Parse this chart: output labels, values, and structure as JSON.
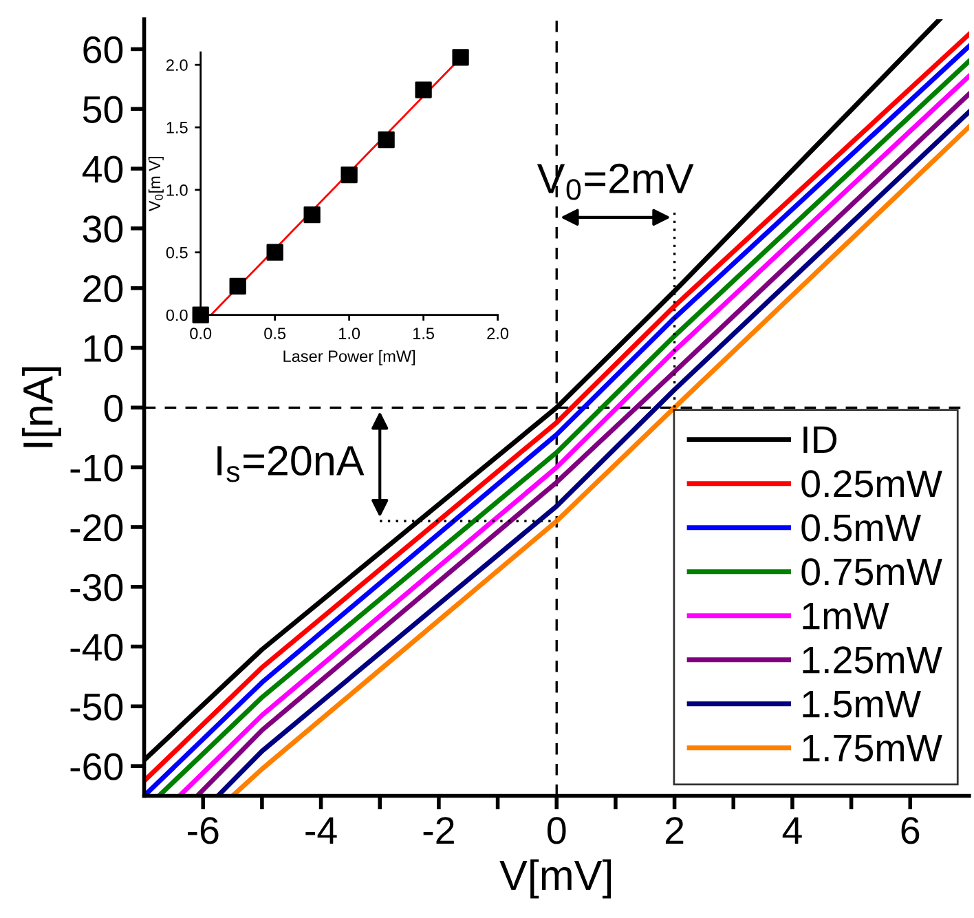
{
  "chart_data": [
    {
      "type": "line",
      "xlabel": "V[mV]",
      "ylabel": "I[nA]",
      "xlim": [
        -7,
        7
      ],
      "ylim": [
        -65,
        65
      ],
      "xticks": [
        -6,
        {
          "value": -5,
          "label": null
        },
        -4,
        {
          "value": -3,
          "label": null
        },
        -2,
        {
          "value": -1,
          "label": null
        },
        0,
        {
          "value": 1,
          "label": null
        },
        2,
        {
          "value": 3,
          "label": null
        },
        4,
        {
          "value": 5,
          "label": null
        },
        6
      ],
      "yticks": [
        -60,
        -50,
        -40,
        -30,
        -20,
        -10,
        0,
        10,
        20,
        30,
        40,
        50,
        60
      ],
      "grid": false,
      "legend": "bottom right",
      "series": [
        {
          "name": "ID",
          "color": "#000000",
          "x": [
            -7,
            -5,
            0,
            2,
            6.5
          ],
          "values": [
            -59,
            -40.5,
            0,
            19.5,
            65
          ]
        },
        {
          "name": "0.25mW",
          "color": "#ff0000",
          "x": [
            -7,
            -5,
            0,
            2,
            7
          ],
          "values": [
            -62.5,
            -43.5,
            -2.5,
            17,
            62.5
          ]
        },
        {
          "name": "0.5mW",
          "color": "#0000ff",
          "x": [
            -7,
            -5,
            0,
            2,
            7
          ],
          "values": [
            -65,
            -46,
            -4.5,
            15,
            60.5
          ]
        },
        {
          "name": "0.75mW",
          "color": "#008000",
          "x": [
            -6.75,
            -5,
            0,
            2,
            7
          ],
          "values": [
            -65,
            -48.5,
            -7.5,
            12,
            58
          ]
        },
        {
          "name": "1mW",
          "color": "#ff00ff",
          "x": [
            -6.4,
            -5,
            0,
            2,
            7
          ],
          "values": [
            -65,
            -51.5,
            -10,
            9.5,
            55.5
          ]
        },
        {
          "name": "1.25mW",
          "color": "#800080",
          "x": [
            -6.1,
            -5,
            0,
            2,
            7
          ],
          "values": [
            -65,
            -54,
            -12.5,
            6,
            52.5
          ]
        },
        {
          "name": "1.5mW",
          "color": "#000080",
          "x": [
            -5.75,
            -5,
            0,
            2,
            7
          ],
          "values": [
            -65,
            -57.5,
            -16.5,
            3,
            49.5
          ]
        },
        {
          "name": "1.75mW",
          "color": "#ff8000",
          "x": [
            -5.5,
            -5,
            0,
            2,
            7
          ],
          "values": [
            -65,
            -60.5,
            -19,
            0,
            47
          ]
        },
        {
          "color": "#000000",
          "line_style": "dotted",
          "x": [
            2,
            2
          ],
          "values": [
            0,
            33
          ]
        },
        {
          "color": "#000000",
          "line_style": "dotted",
          "x": [
            -3,
            0
          ],
          "values": [
            -19,
            -19
          ]
        }
      ],
      "ref_lines": [
        {
          "axis": "x",
          "value": 0,
          "color": "#000000",
          "line_style": "dashed"
        },
        {
          "axis": "y",
          "value": 0,
          "color": "#000000",
          "line_style": "dashed"
        }
      ],
      "annotations": [
        "V$_{0}$=2mV",
        "I$_{s}$=20nA"
      ]
    },
    {
      "type": "scatter",
      "xlabel": "Laser Power [mW]",
      "ylabel": "V$_{0}$[m V]",
      "xlim": [
        0,
        2
      ],
      "ylim": [
        0,
        2.1
      ],
      "xticks": [
        {
          "value": 0,
          "label": "0.0"
        },
        0.5,
        {
          "value": 1,
          "label": "1.0"
        },
        1.5,
        {
          "value": 2,
          "label": "2.0"
        }
      ],
      "yticks": [
        {
          "value": 0,
          "label": "0.0"
        },
        0.5,
        {
          "value": 1,
          "label": "1.0"
        },
        1.5,
        {
          "value": 2,
          "label": "2.0"
        }
      ],
      "series": [
        {
          "color": "#000000",
          "marker": "square",
          "x": [
            0,
            0.25,
            0.5,
            0.75,
            1.0,
            1.25,
            1.5,
            1.75
          ],
          "values": [
            0,
            0.23,
            0.5,
            0.8,
            1.12,
            1.4,
            1.8,
            2.06
          ]
        },
        {
          "type": "line",
          "color": "#ff0000",
          "x": [
            0.07,
            1.77
          ],
          "values": [
            0,
            2.08
          ]
        }
      ]
    }
  ]
}
